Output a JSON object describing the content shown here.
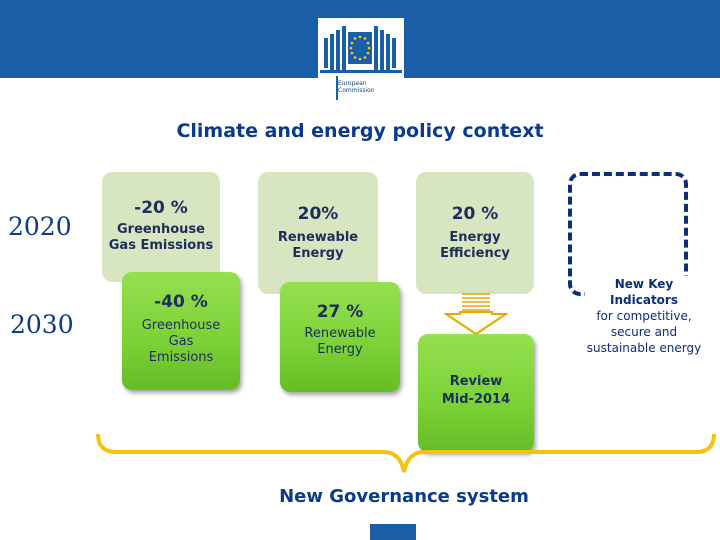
{
  "header": {
    "logo_text": "European\nCommission",
    "brand_color": "#1a5ea8"
  },
  "title": "Climate and energy policy context",
  "years": [
    "2020",
    "2030"
  ],
  "targets_2020": [
    {
      "value": "-20 %",
      "label": "Greenhouse Gas Emissions"
    },
    {
      "value": "20%",
      "label": "Renewable Energy"
    },
    {
      "value": "20 %",
      "label": "Energy Efficiency"
    }
  ],
  "targets_2030": [
    {
      "value": "-40 %",
      "label": "Greenhouse Gas Emissions"
    },
    {
      "value": "27 %",
      "label": "Renewable Energy"
    }
  ],
  "review": {
    "line1": "Review",
    "line2": "Mid-2014"
  },
  "new_key": {
    "title": "New Key Indicators",
    "text": "for competitive, secure and sustainable energy"
  },
  "governance": "New Governance system",
  "colors": {
    "accent": "#0b3a8a",
    "green": "#7bd136",
    "pale_green": "#d7e5c1",
    "bracket": "#f2c40f"
  }
}
